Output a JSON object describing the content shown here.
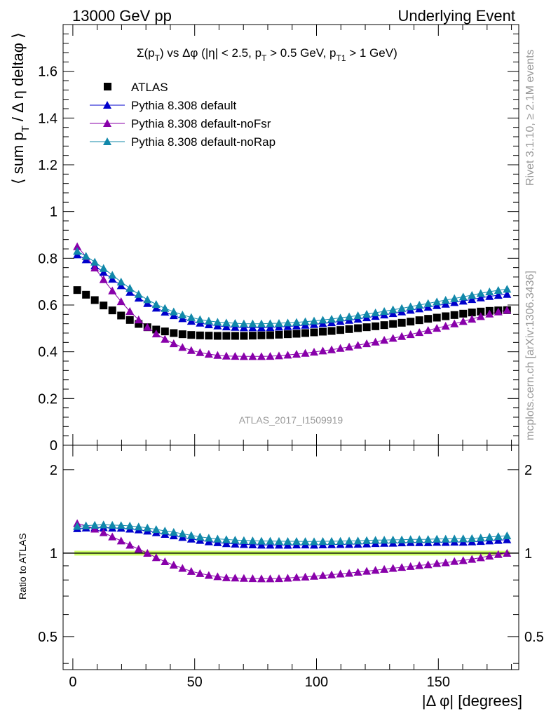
{
  "header": {
    "left": "13000 GeV pp",
    "right": "Underlying Event"
  },
  "side_labels": {
    "rivet": "Rivet 3.1.10, ≥ 2.1M events",
    "mcplots": "mcplots.cern.ch [arXiv:1306.3436]"
  },
  "chart_data": [
    {
      "type": "scatter",
      "title": "Σ(pT) vs Δφ (|η| < 2.5, pT > 0.5 GeV, pT1 > 1 GeV)",
      "title_parts": {
        "sigma": "Σ(p",
        "t1": "T",
        "vs": ") vs Δφ (|η| < 2.5, p",
        "t2": "T",
        "gt": " > 0.5 GeV, p",
        "t3": "T1",
        "end": " > 1 GeV)"
      },
      "ylabel": "⟨ sum pT / Δ η deltaφ ⟩",
      "ylabel_parts": {
        "a": "⟨ sum p",
        "sub": "T",
        "b": " / Δ η deltaφ ⟩"
      },
      "xlim": [
        -4,
        183
      ],
      "ylim": [
        0,
        1.8
      ],
      "yticks": [
        0,
        0.2,
        0.4,
        0.6,
        0.8,
        1,
        1.2,
        1.4,
        1.6
      ],
      "ytick_labels": [
        "0",
        "0.2",
        "0.4",
        "0.6",
        "0.8",
        "1",
        "1.2",
        "1.4",
        "1.6"
      ],
      "watermark": "ATLAS_2017_I1509919",
      "legend_position": "top-left",
      "x": [
        1.8,
        5.4,
        9.0,
        12.6,
        16.2,
        19.8,
        23.4,
        27.0,
        30.6,
        34.2,
        37.8,
        41.4,
        45.0,
        48.6,
        52.2,
        55.8,
        59.4,
        63.0,
        66.6,
        70.2,
        73.8,
        77.4,
        81.0,
        84.6,
        88.2,
        91.8,
        95.4,
        99.0,
        102.6,
        106.2,
        109.8,
        113.4,
        117.0,
        120.6,
        124.2,
        127.8,
        131.4,
        135.0,
        138.6,
        142.2,
        145.8,
        149.4,
        153.0,
        156.6,
        160.2,
        163.8,
        167.4,
        171.0,
        174.6,
        178.2
      ],
      "series": [
        {
          "name": "ATLAS",
          "marker": "square",
          "color": "#000000",
          "values": [
            0.664,
            0.644,
            0.621,
            0.598,
            0.577,
            0.555,
            0.536,
            0.519,
            0.505,
            0.495,
            0.487,
            0.48,
            0.475,
            0.472,
            0.47,
            0.469,
            0.468,
            0.468,
            0.468,
            0.468,
            0.469,
            0.47,
            0.471,
            0.473,
            0.475,
            0.477,
            0.48,
            0.483,
            0.486,
            0.489,
            0.493,
            0.497,
            0.501,
            0.505,
            0.509,
            0.514,
            0.519,
            0.524,
            0.529,
            0.535,
            0.541,
            0.546,
            0.552,
            0.557,
            0.563,
            0.568,
            0.572,
            0.575,
            0.577,
            0.578
          ]
        },
        {
          "name": "Pythia 8.308 default",
          "marker": "triangle",
          "color": "#0000cc",
          "values": [
            0.815,
            0.794,
            0.768,
            0.74,
            0.711,
            0.683,
            0.655,
            0.63,
            0.607,
            0.587,
            0.57,
            0.555,
            0.542,
            0.531,
            0.523,
            0.516,
            0.511,
            0.507,
            0.505,
            0.503,
            0.503,
            0.503,
            0.504,
            0.506,
            0.508,
            0.511,
            0.514,
            0.517,
            0.521,
            0.525,
            0.53,
            0.535,
            0.54,
            0.546,
            0.552,
            0.558,
            0.564,
            0.571,
            0.578,
            0.584,
            0.591,
            0.598,
            0.604,
            0.611,
            0.617,
            0.624,
            0.631,
            0.637,
            0.642,
            0.646
          ]
        },
        {
          "name": "Pythia 8.308 default-noFsr",
          "marker": "triangle",
          "color": "#8800aa",
          "values": [
            0.85,
            0.808,
            0.759,
            0.709,
            0.661,
            0.615,
            0.573,
            0.537,
            0.505,
            0.477,
            0.454,
            0.435,
            0.419,
            0.406,
            0.397,
            0.39,
            0.385,
            0.382,
            0.381,
            0.38,
            0.38,
            0.38,
            0.381,
            0.383,
            0.386,
            0.39,
            0.394,
            0.399,
            0.404,
            0.409,
            0.415,
            0.421,
            0.428,
            0.435,
            0.442,
            0.45,
            0.458,
            0.466,
            0.474,
            0.483,
            0.492,
            0.501,
            0.51,
            0.52,
            0.53,
            0.54,
            0.551,
            0.562,
            0.571,
            0.578
          ]
        },
        {
          "name": "Pythia 8.308 default-noRap",
          "marker": "triangle",
          "color": "#1188aa",
          "values": [
            0.83,
            0.809,
            0.784,
            0.757,
            0.728,
            0.699,
            0.672,
            0.646,
            0.623,
            0.603,
            0.586,
            0.571,
            0.558,
            0.547,
            0.538,
            0.532,
            0.527,
            0.524,
            0.522,
            0.52,
            0.52,
            0.52,
            0.521,
            0.522,
            0.524,
            0.526,
            0.529,
            0.532,
            0.536,
            0.54,
            0.545,
            0.55,
            0.555,
            0.561,
            0.567,
            0.573,
            0.58,
            0.586,
            0.593,
            0.6,
            0.607,
            0.614,
            0.621,
            0.628,
            0.635,
            0.642,
            0.65,
            0.657,
            0.663,
            0.668
          ]
        }
      ]
    },
    {
      "type": "scatter",
      "ylabel": "Ratio to ATLAS",
      "xlabel": "|Δ φ| [degrees]",
      "xlim": [
        -4,
        183
      ],
      "xticks": [
        0,
        50,
        100,
        150
      ],
      "xtick_labels": [
        "0",
        "50",
        "100",
        "150"
      ],
      "ylim": [
        0.38,
        2.45
      ],
      "ylog": true,
      "yticks": [
        0.5,
        1,
        2
      ],
      "ytick_labels": [
        "0.5",
        "1",
        "2"
      ],
      "band_color": "#ccff66",
      "series": [
        {
          "name": "ATLAS",
          "color": "#000000",
          "values": [
            1,
            1,
            1,
            1,
            1,
            1,
            1,
            1,
            1,
            1,
            1,
            1,
            1,
            1,
            1,
            1,
            1,
            1,
            1,
            1,
            1,
            1,
            1,
            1,
            1,
            1,
            1,
            1,
            1,
            1,
            1,
            1,
            1,
            1,
            1,
            1,
            1,
            1,
            1,
            1,
            1,
            1,
            1,
            1,
            1,
            1,
            1,
            1,
            1,
            1
          ]
        },
        {
          "name": "Pythia 8.308 default",
          "marker": "triangle",
          "color": "#0000cc",
          "values": [
            1.227,
            1.233,
            1.237,
            1.237,
            1.232,
            1.231,
            1.222,
            1.214,
            1.202,
            1.186,
            1.17,
            1.156,
            1.141,
            1.125,
            1.113,
            1.1,
            1.092,
            1.083,
            1.079,
            1.075,
            1.072,
            1.07,
            1.07,
            1.07,
            1.069,
            1.071,
            1.071,
            1.07,
            1.072,
            1.074,
            1.075,
            1.076,
            1.078,
            1.081,
            1.084,
            1.086,
            1.087,
            1.09,
            1.093,
            1.092,
            1.092,
            1.095,
            1.094,
            1.097,
            1.096,
            1.099,
            1.103,
            1.108,
            1.113,
            1.118
          ]
        },
        {
          "name": "Pythia 8.308 default-noFsr",
          "marker": "triangle",
          "color": "#8800aa",
          "values": [
            1.28,
            1.255,
            1.222,
            1.186,
            1.146,
            1.108,
            1.069,
            1.035,
            1.0,
            0.964,
            0.932,
            0.906,
            0.882,
            0.86,
            0.845,
            0.832,
            0.823,
            0.816,
            0.814,
            0.812,
            0.81,
            0.809,
            0.809,
            0.81,
            0.813,
            0.818,
            0.821,
            0.826,
            0.831,
            0.836,
            0.842,
            0.847,
            0.854,
            0.861,
            0.868,
            0.875,
            0.882,
            0.889,
            0.896,
            0.903,
            0.909,
            0.918,
            0.924,
            0.934,
            0.941,
            0.951,
            0.963,
            0.977,
            0.99,
            1.0
          ]
        },
        {
          "name": "Pythia 8.308 default-noRap",
          "marker": "triangle",
          "color": "#1188aa",
          "values": [
            1.25,
            1.256,
            1.262,
            1.266,
            1.262,
            1.259,
            1.254,
            1.245,
            1.234,
            1.218,
            1.203,
            1.19,
            1.175,
            1.159,
            1.145,
            1.134,
            1.126,
            1.12,
            1.115,
            1.111,
            1.109,
            1.106,
            1.106,
            1.104,
            1.103,
            1.103,
            1.102,
            1.101,
            1.103,
            1.104,
            1.105,
            1.107,
            1.108,
            1.111,
            1.114,
            1.115,
            1.117,
            1.118,
            1.121,
            1.121,
            1.122,
            1.125,
            1.125,
            1.127,
            1.128,
            1.13,
            1.136,
            1.143,
            1.149,
            1.156
          ]
        }
      ]
    }
  ]
}
